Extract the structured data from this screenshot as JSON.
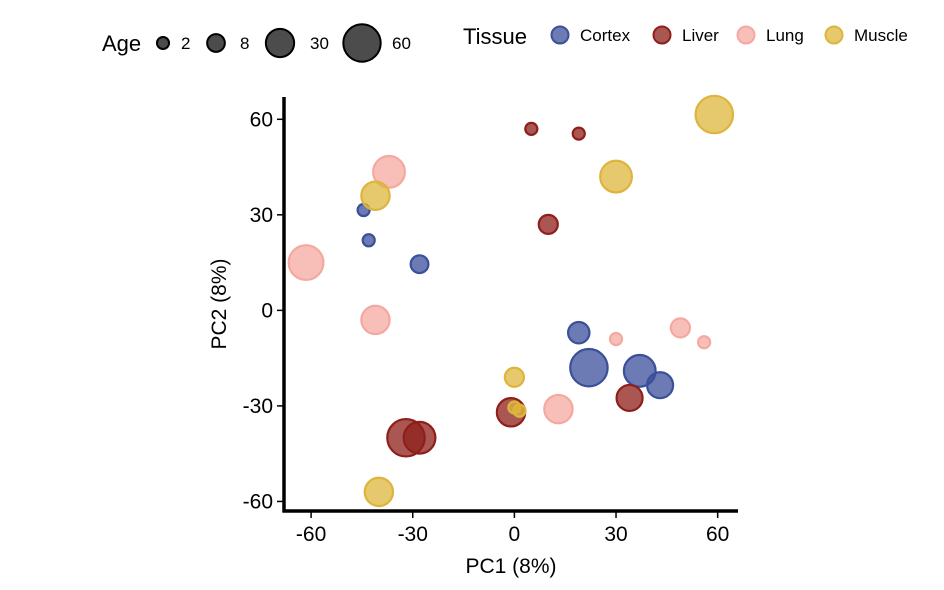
{
  "chart_data": {
    "type": "scatter",
    "title": "",
    "xlabel": "PC1 (8%)",
    "ylabel": "PC2 (8%)",
    "xlim": [
      -68,
      66
    ],
    "ylim": [
      -63,
      67
    ],
    "xticks": [
      -60,
      -30,
      0,
      30,
      60
    ],
    "yticks": [
      -60,
      -30,
      0,
      30,
      60
    ],
    "xtick_labels": [
      "-60",
      "-30",
      "0",
      "30",
      "60"
    ],
    "ytick_labels": [
      "-60",
      "-30",
      "0",
      "30",
      "60"
    ],
    "grid": false,
    "legend_position": "top",
    "size_legend": {
      "title": "Age",
      "entries": [
        {
          "label": "2",
          "value": 2
        },
        {
          "label": "8",
          "value": 8
        },
        {
          "label": "30",
          "value": 30
        },
        {
          "label": "60",
          "value": 60
        }
      ]
    },
    "color_legend": {
      "title": "Tissue",
      "entries": [
        {
          "label": "Cortex",
          "color": "#3B4F9A"
        },
        {
          "label": "Liver",
          "color": "#8E1F1A"
        },
        {
          "label": "Lung",
          "color": "#F4A9A0"
        },
        {
          "label": "Muscle",
          "color": "#DDB53C"
        }
      ]
    },
    "series": [
      {
        "name": "Cortex",
        "color": "#3B4F9A",
        "points": [
          {
            "x": -44.5,
            "y": 31.5,
            "age": 2
          },
          {
            "x": -43,
            "y": 22,
            "age": 2
          },
          {
            "x": -28,
            "y": 14.5,
            "age": 8
          },
          {
            "x": 19,
            "y": -7,
            "age": 14
          },
          {
            "x": 22,
            "y": -18,
            "age": 60
          },
          {
            "x": 37,
            "y": -19,
            "age": 40
          },
          {
            "x": 43,
            "y": -23.5,
            "age": 24
          }
        ]
      },
      {
        "name": "Liver",
        "color": "#8E1F1A",
        "points": [
          {
            "x": 5,
            "y": 57,
            "age": 2
          },
          {
            "x": 19,
            "y": 55.5,
            "age": 2
          },
          {
            "x": 10,
            "y": 27,
            "age": 10
          },
          {
            "x": -1,
            "y": -32,
            "age": 30
          },
          {
            "x": 34,
            "y": -27.5,
            "age": 24
          },
          {
            "x": -32,
            "y": -40,
            "age": 60
          },
          {
            "x": -28,
            "y": -40,
            "age": 40
          }
        ]
      },
      {
        "name": "Lung",
        "color": "#F4A9A0",
        "points": [
          {
            "x": -37,
            "y": 43.5,
            "age": 40
          },
          {
            "x": -61.5,
            "y": 15,
            "age": 50
          },
          {
            "x": -41,
            "y": -3,
            "age": 30
          },
          {
            "x": 49,
            "y": -5.5,
            "age": 10
          },
          {
            "x": 30,
            "y": -9,
            "age": 2
          },
          {
            "x": 56,
            "y": -10,
            "age": 2
          },
          {
            "x": 13,
            "y": -31,
            "age": 30
          }
        ]
      },
      {
        "name": "Muscle",
        "color": "#DDB53C",
        "points": [
          {
            "x": 59,
            "y": 61.5,
            "age": 60
          },
          {
            "x": 30,
            "y": 42,
            "age": 40
          },
          {
            "x": -41,
            "y": 36,
            "age": 30
          },
          {
            "x": 0,
            "y": -21,
            "age": 10
          },
          {
            "x": 0,
            "y": -30.5,
            "age": 2
          },
          {
            "x": 1.5,
            "y": -31.5,
            "age": 2
          },
          {
            "x": -40,
            "y": -57,
            "age": 30
          }
        ]
      }
    ]
  }
}
